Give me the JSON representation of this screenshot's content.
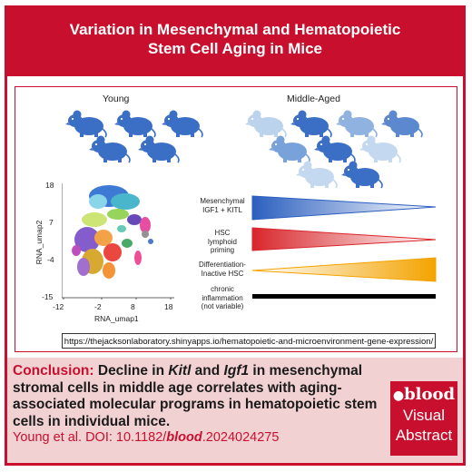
{
  "title": {
    "line1": "Variation in Mesenchymal and Hematopoietic",
    "line2": "Stem Cell Aging in Mice"
  },
  "groups": {
    "young": "Young",
    "middle_aged": "Middle-Aged"
  },
  "umap": {
    "xlabel": "RNA_umap1",
    "ylabel": "RNA_umap2",
    "xticks": [
      "-12",
      "-2",
      "8",
      "18"
    ],
    "yticks": [
      "18",
      "7",
      "-4",
      "-15"
    ]
  },
  "trends": [
    {
      "label": [
        "Mesenchymal",
        "IGF1 + KITL"
      ],
      "color": "#3b6fc6",
      "shape": "decreasing"
    },
    {
      "label": [
        "HSC",
        "lymphoid",
        "priming"
      ],
      "color": "#d8262b",
      "shape": "decreasing"
    },
    {
      "label": [
        "Differentiation-",
        "Inactive HSC"
      ],
      "color": "#f4a300",
      "shape": "increasing"
    },
    {
      "label": [
        "chronic",
        "inflammation",
        "(not variable)"
      ],
      "color": "#000000",
      "shape": "flat"
    }
  ],
  "url": "https://thejacksonlaboratory.shinyapps.io/hematopoietic-and-microenvironment-gene-expression/",
  "conclusion": {
    "lead": "Conclusion:",
    "p1": " Decline in ",
    "kitl": "Kitl",
    "p2": " and ",
    "igf1": "Igf1",
    "p3": " in mesenchymal stromal cells in middle age correlates with aging-associated molecular programs in hematopoietic stem cells in individual mice."
  },
  "citation": {
    "pre": "Young et al. DOI: 10.1182/",
    "journal": "blood",
    "post": ".2024024275"
  },
  "badge": {
    "logo": "blood",
    "line1": "Visual",
    "line2": "Abstract"
  },
  "colors": {
    "brand_red": "#c8102e",
    "panel_pink": "#f2d1d3",
    "young_mouse": "#3b6fc6"
  }
}
